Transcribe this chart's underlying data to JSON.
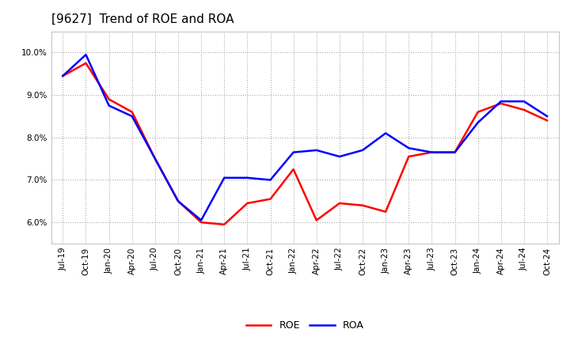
{
  "title": "[9627]  Trend of ROE and ROA",
  "x_labels": [
    "Jul-19",
    "Oct-19",
    "Jan-20",
    "Apr-20",
    "Jul-20",
    "Oct-20",
    "Jan-21",
    "Apr-21",
    "Jul-21",
    "Oct-21",
    "Jan-22",
    "Apr-22",
    "Jul-22",
    "Oct-22",
    "Jan-23",
    "Apr-23",
    "Jul-23",
    "Oct-23",
    "Jan-24",
    "Apr-24",
    "Jul-24",
    "Oct-24"
  ],
  "roe": [
    9.45,
    9.75,
    8.9,
    8.6,
    7.5,
    6.5,
    6.0,
    5.95,
    6.45,
    6.55,
    7.25,
    6.05,
    6.45,
    6.4,
    6.25,
    7.55,
    7.65,
    7.65,
    8.6,
    8.8,
    8.65,
    8.4
  ],
  "roa": [
    9.45,
    9.95,
    8.75,
    8.5,
    7.5,
    6.5,
    6.05,
    7.05,
    7.05,
    7.0,
    7.65,
    7.7,
    7.55,
    7.7,
    8.1,
    7.75,
    7.65,
    7.65,
    8.35,
    8.85,
    8.85,
    8.5
  ],
  "roe_color": "#ff0000",
  "roa_color": "#0000ff",
  "background_color": "#ffffff",
  "grid_color": "#aaaaaa",
  "ylim": [
    5.5,
    10.5
  ],
  "yticks": [
    6.0,
    7.0,
    8.0,
    9.0,
    10.0
  ],
  "title_fontsize": 11,
  "line_width": 1.8,
  "tick_fontsize": 7.5,
  "legend_fontsize": 9
}
